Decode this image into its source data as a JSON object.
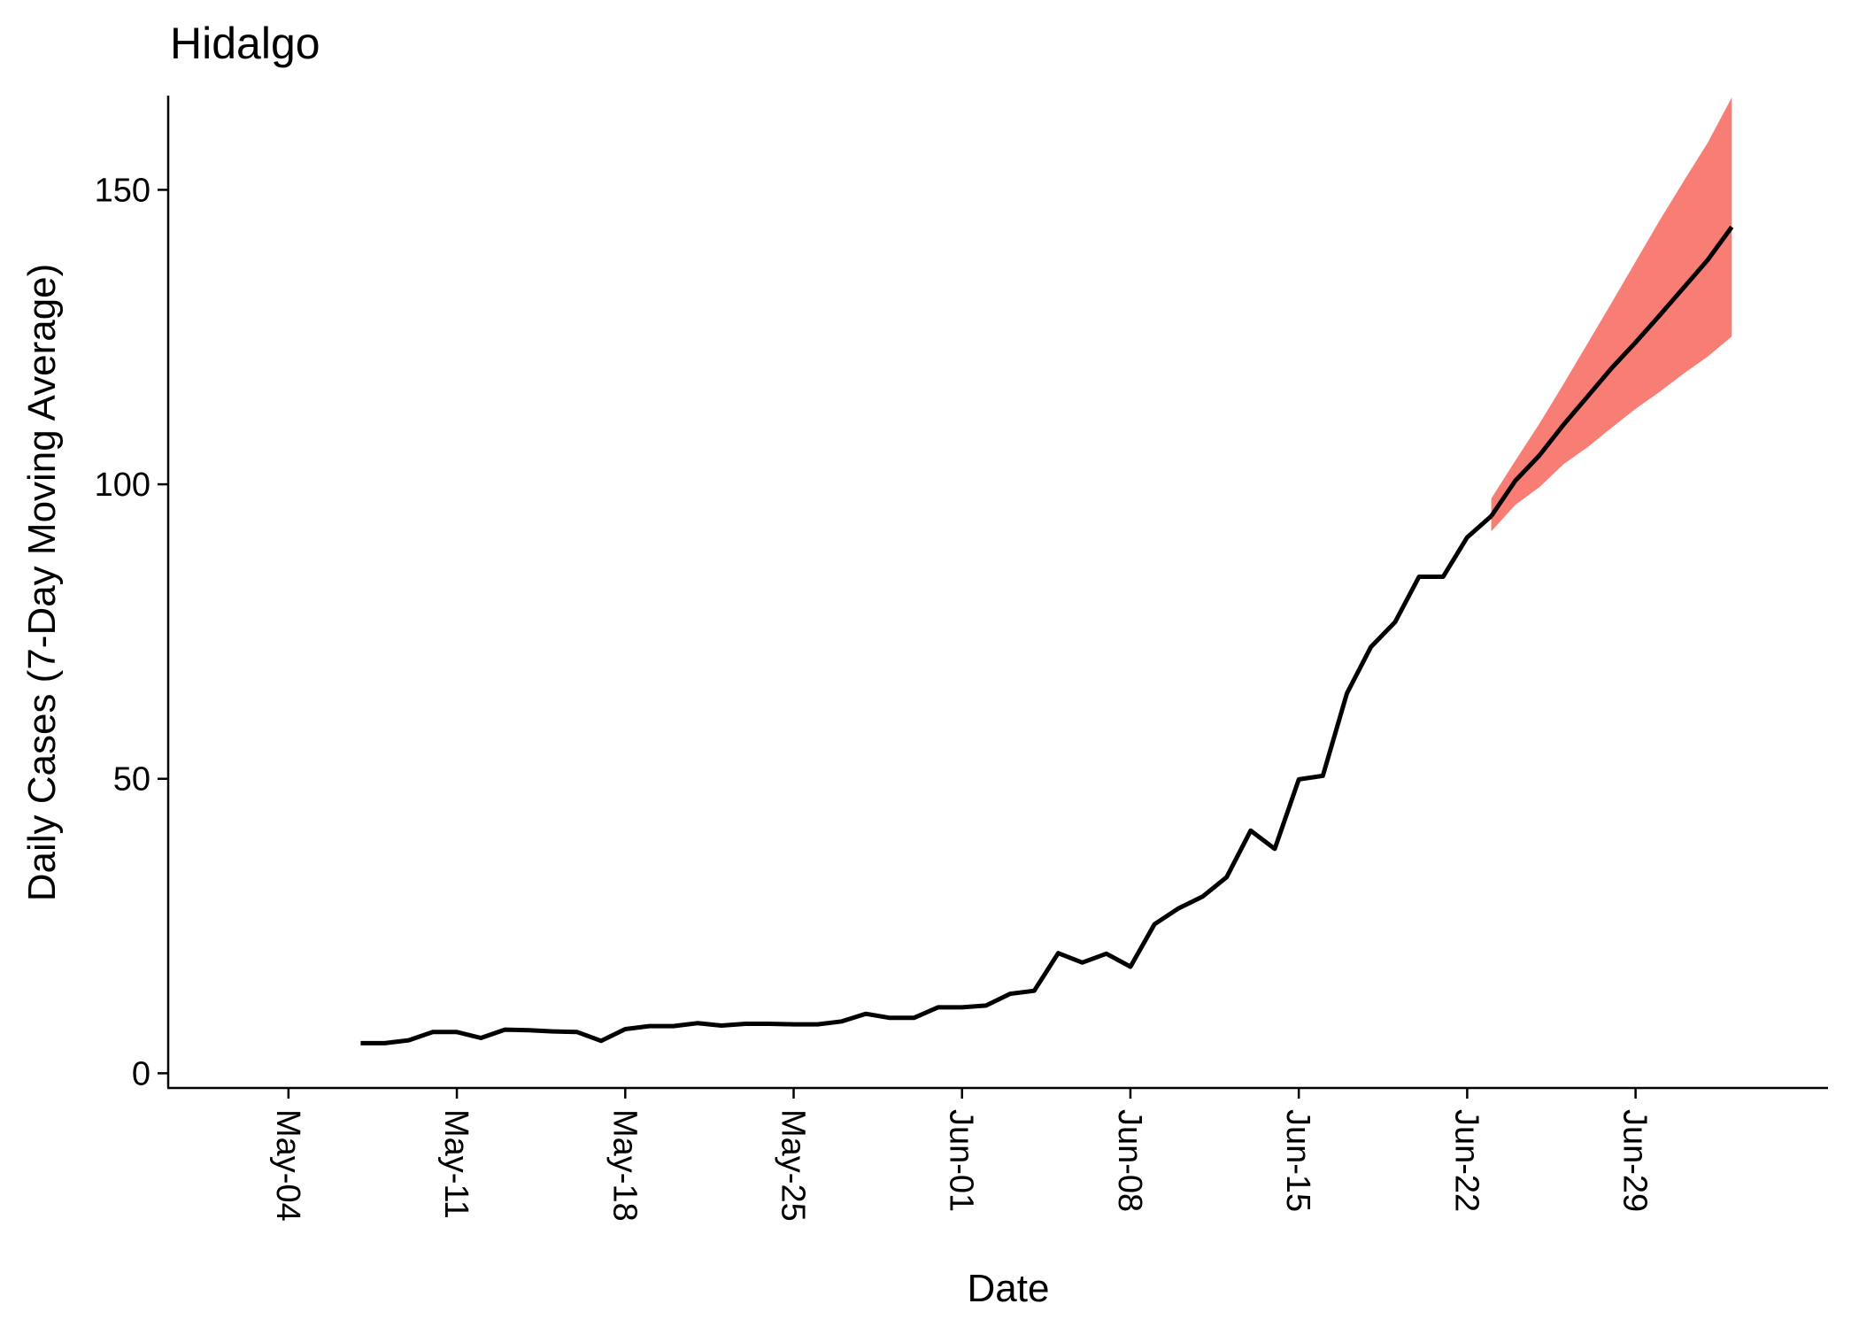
{
  "chart_data": {
    "type": "line",
    "title": "Hidalgo",
    "xlabel": "Date",
    "ylabel": "Daily Cases (7-Day Moving Average)",
    "x_tick_labels": [
      "May-04",
      "May-11",
      "May-18",
      "May-25",
      "Jun-01",
      "Jun-08",
      "Jun-15",
      "Jun-22",
      "Jun-29"
    ],
    "y_ticks": [
      0,
      50,
      100,
      150
    ],
    "y_tick_labels": [
      "0",
      "50",
      "100",
      "150"
    ],
    "ylim": [
      -2.5,
      166
    ],
    "xlim": [
      "2020-04-29",
      "2020-07-07"
    ],
    "grid": false,
    "legend": "none",
    "series": [
      {
        "kind": "observed",
        "color": "#000000",
        "dates": [
          "2020-05-07",
          "2020-05-08",
          "2020-05-09",
          "2020-05-10",
          "2020-05-11",
          "2020-05-12",
          "2020-05-13",
          "2020-05-14",
          "2020-05-15",
          "2020-05-16",
          "2020-05-17",
          "2020-05-18",
          "2020-05-19",
          "2020-05-20",
          "2020-05-21",
          "2020-05-22",
          "2020-05-23",
          "2020-05-24",
          "2020-05-25",
          "2020-05-26",
          "2020-05-27",
          "2020-05-28",
          "2020-05-29",
          "2020-05-30",
          "2020-05-31",
          "2020-06-01",
          "2020-06-02",
          "2020-06-03",
          "2020-06-04",
          "2020-06-05",
          "2020-06-06",
          "2020-06-07",
          "2020-06-08",
          "2020-06-09",
          "2020-06-10",
          "2020-06-11",
          "2020-06-12",
          "2020-06-13",
          "2020-06-14",
          "2020-06-15",
          "2020-06-16",
          "2020-06-17",
          "2020-06-18",
          "2020-06-19",
          "2020-06-20",
          "2020-06-21",
          "2020-06-22",
          "2020-06-23"
        ],
        "values": [
          5.1,
          5.1,
          5.6,
          7.0,
          7.0,
          6.0,
          7.4,
          7.3,
          7.1,
          7.0,
          5.5,
          7.5,
          8.0,
          8.0,
          8.5,
          8.1,
          8.4,
          8.4,
          8.3,
          8.3,
          8.8,
          10.1,
          9.4,
          9.4,
          11.2,
          11.2,
          11.5,
          13.5,
          14.0,
          20.4,
          18.8,
          20.3,
          18.1,
          25.3,
          28.0,
          30.0,
          33.3,
          41.2,
          38.1,
          49.9,
          50.5,
          64.5,
          72.4,
          76.6,
          84.3,
          84.3,
          91.0,
          94.6
        ]
      },
      {
        "kind": "forecast",
        "color": "#000000",
        "band_color": "#f8766d",
        "dates": [
          "2020-06-23",
          "2020-06-24",
          "2020-06-25",
          "2020-06-26",
          "2020-06-27",
          "2020-06-28",
          "2020-06-29",
          "2020-06-30",
          "2020-07-01",
          "2020-07-02",
          "2020-07-03"
        ],
        "values": [
          94.6,
          100.6,
          104.9,
          110.1,
          114.9,
          119.7,
          124.1,
          128.7,
          133.4,
          138.1,
          143.7
        ],
        "lower": [
          92.0,
          96.5,
          99.5,
          103.4,
          106.3,
          109.6,
          112.8,
          115.7,
          118.8,
          121.7,
          125.1
        ],
        "upper": [
          97.6,
          104.0,
          110.3,
          117.0,
          123.9,
          130.8,
          137.8,
          144.8,
          151.5,
          158.0,
          165.7
        ]
      }
    ]
  }
}
